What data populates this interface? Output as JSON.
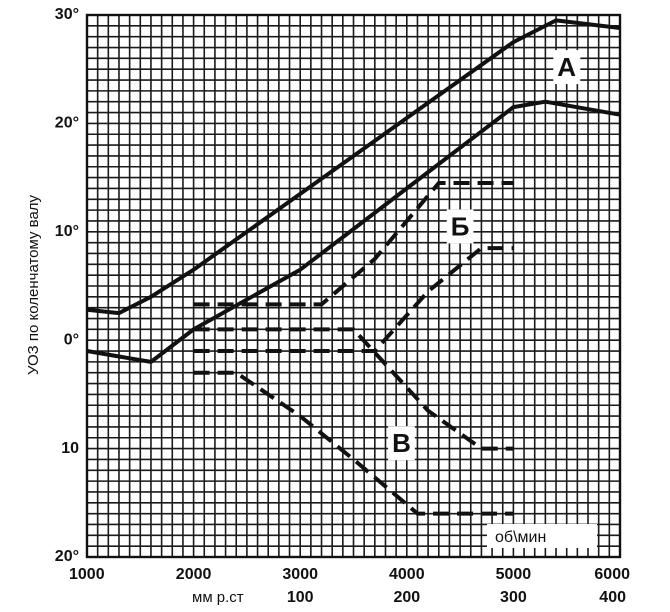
{
  "chart_data": {
    "type": "line",
    "title": "",
    "ylabel": "УОЗ по коленчатому валу",
    "xlabel": "мм р.ст",
    "x_unit": "об\\мин",
    "xlim": [
      1000,
      6000
    ],
    "ylim": [
      -20,
      30
    ],
    "y_ticks": [
      {
        "v": 30,
        "label": "30°"
      },
      {
        "v": 20,
        "label": "20°"
      },
      {
        "v": 10,
        "label": "10°"
      },
      {
        "v": 0,
        "label": "0°"
      },
      {
        "v": -10,
        "label": "10"
      },
      {
        "v": -20,
        "label": "20°"
      }
    ],
    "x_ticks": [
      {
        "v": 1000,
        "label": "1000"
      },
      {
        "v": 2000,
        "label": "2000"
      },
      {
        "v": 3000,
        "label": "3000"
      },
      {
        "v": 4000,
        "label": "4000"
      },
      {
        "v": 5000,
        "label": "5000"
      },
      {
        "v": 6000,
        "label": "6000"
      }
    ],
    "pressure_ticks": [
      {
        "v": 3000,
        "label": "100"
      },
      {
        "v": 4000,
        "label": "200"
      },
      {
        "v": 5000,
        "label": "300"
      },
      {
        "v": 6000,
        "label": "400"
      }
    ],
    "grid": true,
    "series": [
      {
        "name": "А",
        "style": "solid",
        "points": [
          [
            1000,
            2.8
          ],
          [
            1300,
            2.5
          ],
          [
            1600,
            4
          ],
          [
            2000,
            6.5
          ],
          [
            3000,
            13.5
          ],
          [
            4000,
            20.5
          ],
          [
            5000,
            27.5
          ],
          [
            5400,
            29.5
          ],
          [
            6000,
            28.8
          ]
        ]
      },
      {
        "name": "А",
        "style": "solid",
        "points": [
          [
            1000,
            -1
          ],
          [
            1300,
            -1.5
          ],
          [
            1600,
            -2
          ],
          [
            2000,
            1
          ],
          [
            3000,
            6.5
          ],
          [
            4000,
            14
          ],
          [
            5000,
            21.5
          ],
          [
            5300,
            22
          ],
          [
            6000,
            20.8
          ]
        ]
      },
      {
        "name": "Б",
        "style": "dashed",
        "points": [
          [
            2000,
            3.3
          ],
          [
            3200,
            3.3
          ],
          [
            3700,
            7.5
          ],
          [
            4300,
            14.5
          ],
          [
            5000,
            14.5
          ]
        ]
      },
      {
        "name": "Б",
        "style": "dashed",
        "points": [
          [
            2000,
            -1
          ],
          [
            3700,
            -1
          ],
          [
            4200,
            4.5
          ],
          [
            4700,
            8.5
          ],
          [
            5000,
            8.5
          ]
        ]
      },
      {
        "name": "В",
        "style": "dashed",
        "points": [
          [
            2000,
            1
          ],
          [
            3500,
            1
          ],
          [
            4200,
            -6.5
          ],
          [
            4700,
            -10
          ],
          [
            5000,
            -10
          ]
        ]
      },
      {
        "name": "В",
        "style": "dashed",
        "points": [
          [
            2000,
            -3
          ],
          [
            2400,
            -3
          ],
          [
            3000,
            -7
          ],
          [
            3500,
            -11
          ],
          [
            4100,
            -16
          ],
          [
            5000,
            -16
          ]
        ]
      }
    ],
    "annotations": [
      {
        "text": "А",
        "x": 5500,
        "y": 25
      },
      {
        "text": "Б",
        "x": 4500,
        "y": 10.3
      },
      {
        "text": "В",
        "x": 3950,
        "y": -9.7
      }
    ]
  }
}
